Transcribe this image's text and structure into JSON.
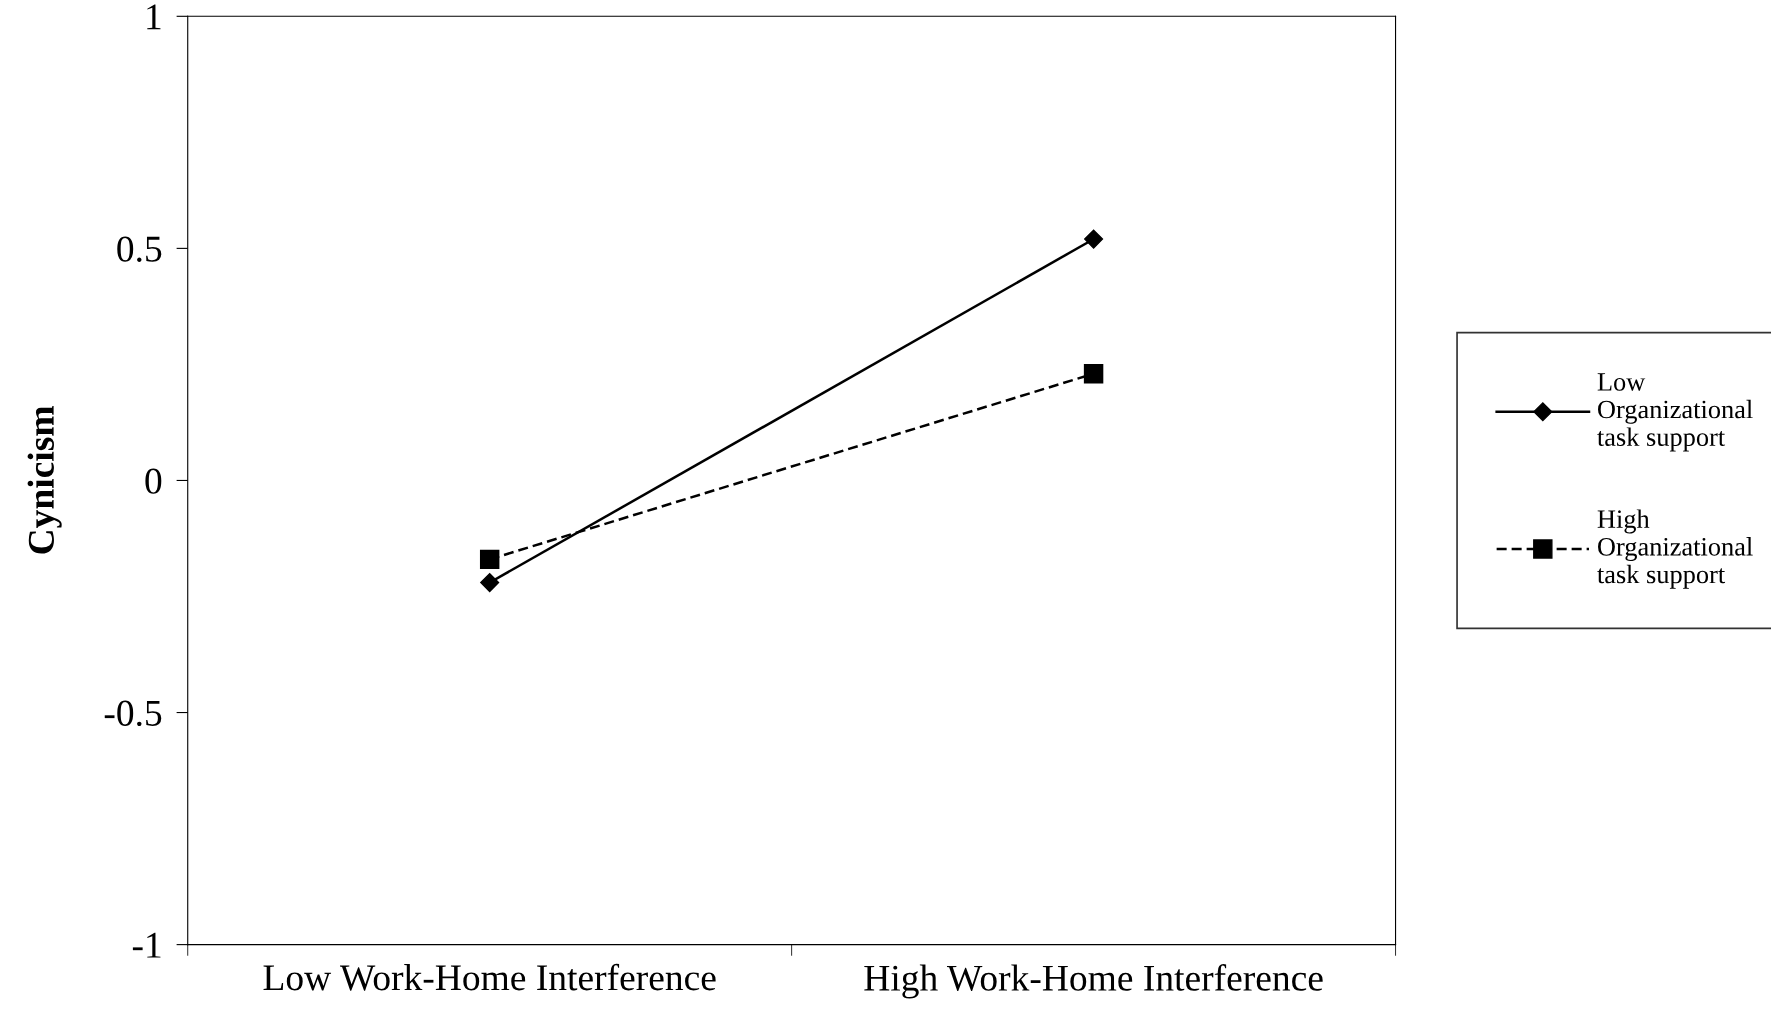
{
  "chart_data": {
    "type": "line",
    "ylabel": "Cynicism",
    "categories": [
      "Low Work-Home Interference",
      "High Work-Home Interference"
    ],
    "series": [
      {
        "name": "Low\nOrganizational\ntask support",
        "color": "#000000",
        "values": [
          -0.22,
          0.52
        ],
        "marker": "diamond",
        "line_style": "solid"
      },
      {
        "name": "High\nOrganizational\ntask support",
        "color": "#000000",
        "values": [
          -0.17,
          0.23
        ],
        "marker": "square",
        "line_style": "dashed"
      }
    ],
    "ylim": [
      -1,
      1
    ],
    "yticks": [
      -1,
      -0.5,
      0,
      0.5,
      1
    ],
    "grid": false,
    "legend": "right"
  }
}
